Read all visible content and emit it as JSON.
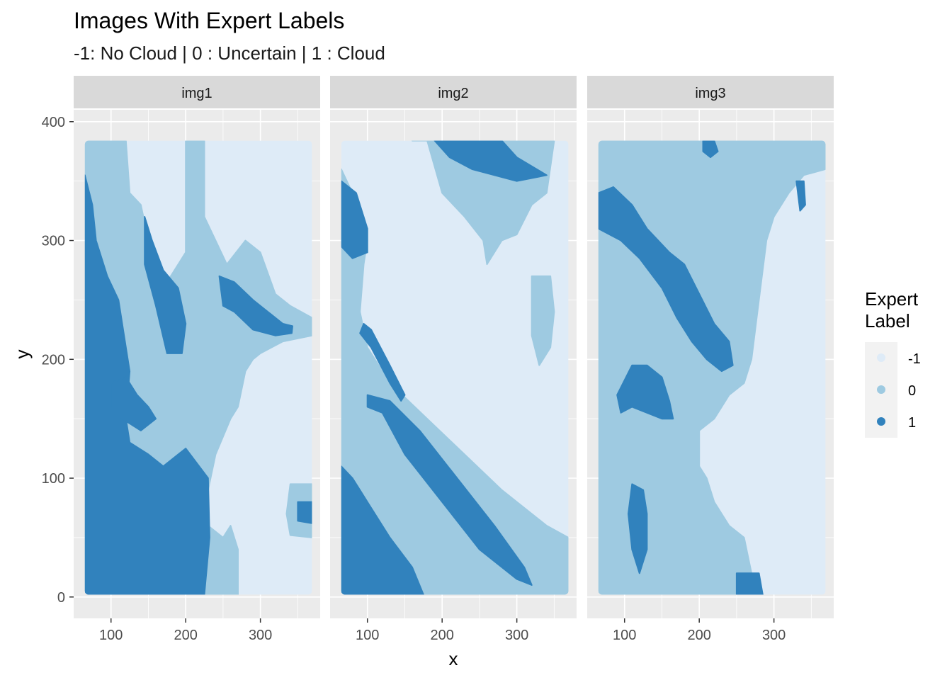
{
  "chart_data": {
    "type": "heatmap",
    "title": "Images With Expert Labels",
    "subtitle": "-1: No Cloud | 0 : Uncertain | 1 : Cloud",
    "xlabel": "x",
    "ylabel": "y",
    "xlim": [
      50,
      380
    ],
    "ylim": [
      -18,
      410
    ],
    "x_ticks": [
      100,
      200,
      300
    ],
    "y_ticks": [
      0,
      100,
      200,
      300,
      400
    ],
    "facets": [
      "img1",
      "img2",
      "img3"
    ],
    "grid": true,
    "legend": {
      "title_lines": [
        "Expert",
        "Label"
      ],
      "placement": "right",
      "entries": [
        {
          "label": "-1",
          "color": "#deebf7"
        },
        {
          "label": "0",
          "color": "#9ecae1"
        },
        {
          "label": "1",
          "color": "#3182bd"
        }
      ]
    },
    "data_extent": {
      "x": [
        65,
        369
      ],
      "y": [
        2,
        384
      ]
    },
    "regions": {
      "img1": [
        {
          "label": "0",
          "points": [
            [
              65,
              384
            ],
            [
              120,
              384
            ],
            [
              125,
              340
            ],
            [
              140,
              330
            ],
            [
              150,
              300
            ],
            [
              170,
              260
            ],
            [
              200,
              290
            ],
            [
              200,
              384
            ],
            [
              225,
              384
            ],
            [
              225,
              320
            ],
            [
              240,
              300
            ],
            [
              255,
              280
            ],
            [
              280,
              300
            ],
            [
              300,
              290
            ],
            [
              320,
              255
            ],
            [
              340,
              245
            ],
            [
              369,
              235
            ],
            [
              369,
              220
            ],
            [
              330,
              215
            ],
            [
              300,
              205
            ],
            [
              290,
              200
            ],
            [
              280,
              190
            ],
            [
              270,
              160
            ],
            [
              260,
              150
            ],
            [
              240,
              120
            ],
            [
              230,
              90
            ],
            [
              230,
              60
            ],
            [
              250,
              50
            ],
            [
              260,
              60
            ],
            [
              270,
              40
            ],
            [
              270,
              2
            ],
            [
              65,
              2
            ]
          ]
        },
        {
          "label": "0",
          "points": [
            [
              340,
              95
            ],
            [
              369,
              95
            ],
            [
              369,
              50
            ],
            [
              340,
              52
            ],
            [
              335,
              70
            ]
          ]
        },
        {
          "label": "1",
          "points": [
            [
              65,
              355
            ],
            [
              75,
              330
            ],
            [
              80,
              300
            ],
            [
              95,
              270
            ],
            [
              110,
              250
            ],
            [
              120,
              210
            ],
            [
              125,
              190
            ],
            [
              120,
              150
            ],
            [
              125,
              130
            ],
            [
              150,
              120
            ],
            [
              170,
              110
            ],
            [
              200,
              125
            ],
            [
              230,
              100
            ],
            [
              232,
              50
            ],
            [
              225,
              2
            ],
            [
              65,
              2
            ]
          ]
        },
        {
          "label": "1",
          "points": [
            [
              145,
              320
            ],
            [
              155,
              300
            ],
            [
              170,
              275
            ],
            [
              190,
              260
            ],
            [
              200,
              230
            ],
            [
              195,
              205
            ],
            [
              175,
              205
            ],
            [
              160,
              245
            ],
            [
              145,
              280
            ]
          ]
        },
        {
          "label": "1",
          "points": [
            [
              245,
              270
            ],
            [
              265,
              265
            ],
            [
              290,
              250
            ],
            [
              330,
              230
            ],
            [
              343,
              228
            ],
            [
              342,
              222
            ],
            [
              320,
              220
            ],
            [
              290,
              225
            ],
            [
              265,
              240
            ],
            [
              250,
              245
            ]
          ]
        },
        {
          "label": "1",
          "points": [
            [
              100,
              180
            ],
            [
              120,
              185
            ],
            [
              135,
              170
            ],
            [
              150,
              160
            ],
            [
              160,
              150
            ],
            [
              140,
              140
            ],
            [
              115,
              150
            ],
            [
              100,
              160
            ]
          ]
        },
        {
          "label": "1",
          "points": [
            [
              350,
              80
            ],
            [
              369,
              80
            ],
            [
              369,
              62
            ],
            [
              350,
              64
            ]
          ]
        }
      ],
      "img2": [
        {
          "label": "0",
          "points": [
            [
              65,
              360
            ],
            [
              95,
              320
            ],
            [
              100,
              300
            ],
            [
              95,
              280
            ],
            [
              90,
              240
            ],
            [
              100,
              210
            ],
            [
              130,
              180
            ],
            [
              180,
              150
            ],
            [
              230,
              120
            ],
            [
              280,
              90
            ],
            [
              340,
              60
            ],
            [
              369,
              50
            ],
            [
              369,
              2
            ],
            [
              65,
              2
            ]
          ]
        },
        {
          "label": "0",
          "points": [
            [
              160,
              384
            ],
            [
              180,
              384
            ],
            [
              200,
              340
            ],
            [
              230,
              320
            ],
            [
              255,
              300
            ],
            [
              260,
              280
            ],
            [
              280,
              300
            ],
            [
              300,
              305
            ],
            [
              320,
              330
            ],
            [
              340,
              340
            ],
            [
              350,
              384
            ]
          ]
        },
        {
          "label": "0",
          "points": [
            [
              320,
              270
            ],
            [
              345,
              270
            ],
            [
              350,
              240
            ],
            [
              345,
              210
            ],
            [
              330,
              195
            ],
            [
              320,
              220
            ]
          ]
        },
        {
          "label": "1",
          "points": [
            [
              65,
              350
            ],
            [
              85,
              340
            ],
            [
              100,
              310
            ],
            [
              100,
              290
            ],
            [
              80,
              285
            ],
            [
              65,
              295
            ]
          ]
        },
        {
          "label": "1",
          "points": [
            [
              190,
              384
            ],
            [
              280,
              384
            ],
            [
              300,
              370
            ],
            [
              340,
              355
            ],
            [
              300,
              350
            ],
            [
              270,
              355
            ],
            [
              240,
              360
            ],
            [
              210,
              370
            ]
          ]
        },
        {
          "label": "1",
          "points": [
            [
              95,
              230
            ],
            [
              105,
              225
            ],
            [
              130,
              195
            ],
            [
              150,
              170
            ],
            [
              145,
              165
            ],
            [
              130,
              180
            ],
            [
              105,
              210
            ],
            [
              90,
              222
            ]
          ]
        },
        {
          "label": "1",
          "points": [
            [
              100,
              160
            ],
            [
              120,
              155
            ],
            [
              150,
              120
            ],
            [
              200,
              80
            ],
            [
              250,
              40
            ],
            [
              300,
              15
            ],
            [
              320,
              10
            ],
            [
              310,
              25
            ],
            [
              270,
              60
            ],
            [
              220,
              100
            ],
            [
              170,
              140
            ],
            [
              130,
              165
            ],
            [
              100,
              170
            ]
          ]
        },
        {
          "label": "1",
          "points": [
            [
              65,
              110
            ],
            [
              80,
              100
            ],
            [
              100,
              80
            ],
            [
              130,
              50
            ],
            [
              160,
              25
            ],
            [
              175,
              2
            ],
            [
              65,
              2
            ]
          ]
        }
      ],
      "img3": [
        {
          "label": "0",
          "points": [
            [
              65,
              384
            ],
            [
              369,
              384
            ],
            [
              369,
              360
            ],
            [
              340,
              355
            ],
            [
              320,
              340
            ],
            [
              300,
              320
            ],
            [
              290,
              300
            ],
            [
              280,
              250
            ],
            [
              270,
              200
            ],
            [
              260,
              180
            ],
            [
              240,
              170
            ],
            [
              220,
              150
            ],
            [
              200,
              140
            ],
            [
              200,
              110
            ],
            [
              210,
              100
            ],
            [
              220,
              80
            ],
            [
              240,
              60
            ],
            [
              260,
              50
            ],
            [
              270,
              20
            ],
            [
              280,
              2
            ],
            [
              65,
              2
            ]
          ]
        },
        {
          "label": "1",
          "points": [
            [
              65,
              340
            ],
            [
              85,
              345
            ],
            [
              110,
              330
            ],
            [
              130,
              310
            ],
            [
              160,
              290
            ],
            [
              180,
              280
            ],
            [
              200,
              255
            ],
            [
              220,
              230
            ],
            [
              240,
              215
            ],
            [
              245,
              195
            ],
            [
              230,
              190
            ],
            [
              210,
              200
            ],
            [
              190,
              215
            ],
            [
              170,
              235
            ],
            [
              150,
              260
            ],
            [
              120,
              285
            ],
            [
              95,
              300
            ],
            [
              65,
              310
            ]
          ]
        },
        {
          "label": "1",
          "points": [
            [
              90,
              170
            ],
            [
              110,
              195
            ],
            [
              130,
              195
            ],
            [
              150,
              185
            ],
            [
              160,
              165
            ],
            [
              165,
              150
            ],
            [
              150,
              150
            ],
            [
              130,
              155
            ],
            [
              110,
              160
            ],
            [
              95,
              155
            ]
          ]
        },
        {
          "label": "1",
          "points": [
            [
              110,
              95
            ],
            [
              125,
              90
            ],
            [
              130,
              70
            ],
            [
              130,
              40
            ],
            [
              120,
              20
            ],
            [
              110,
              40
            ],
            [
              105,
              70
            ]
          ]
        },
        {
          "label": "1",
          "points": [
            [
              250,
              20
            ],
            [
              280,
              20
            ],
            [
              285,
              2
            ],
            [
              250,
              2
            ]
          ]
        },
        {
          "label": "1",
          "points": [
            [
              205,
              384
            ],
            [
              220,
              384
            ],
            [
              225,
              375
            ],
            [
              215,
              370
            ],
            [
              205,
              375
            ]
          ]
        },
        {
          "label": "1",
          "points": [
            [
              330,
              350
            ],
            [
              340,
              350
            ],
            [
              342,
              330
            ],
            [
              335,
              325
            ]
          ]
        }
      ]
    }
  }
}
